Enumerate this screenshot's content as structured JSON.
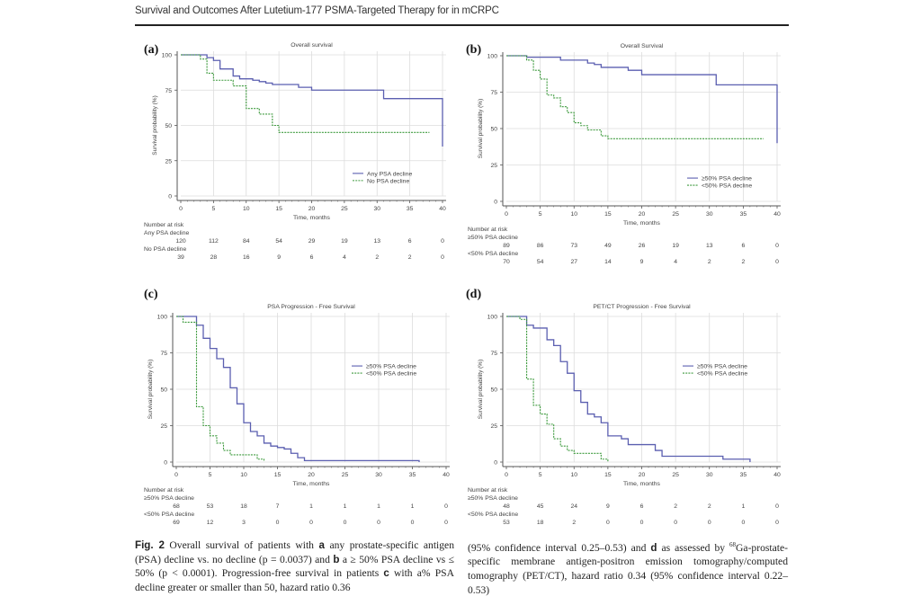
{
  "header": {
    "running_title": "Survival and Outcomes After Lutetium-177 PSMA-Targeted Therapy for in mCRPC"
  },
  "colors": {
    "series_primary": "#5b5fb0",
    "series_secondary": "#3d9a3d",
    "grid": "#dcdcdc",
    "axis": "#555555"
  },
  "chart_data": [
    {
      "id": "a",
      "panel_label": "(a)",
      "type": "line",
      "subtype": "kaplan-meier",
      "title": "Overall survival",
      "xlabel": "Time, months",
      "ylabel": "Survival probability (%)",
      "xlim": [
        0,
        40
      ],
      "ylim": [
        0,
        100
      ],
      "xticks": [
        0,
        5,
        10,
        15,
        20,
        25,
        30,
        35,
        40
      ],
      "yticks": [
        0,
        25,
        50,
        75,
        100
      ],
      "grid": true,
      "legend_position": "bottom-right",
      "series": [
        {
          "name": "Any PSA decline",
          "style": "solid",
          "steps": [
            [
              0,
              100
            ],
            [
              3,
              100
            ],
            [
              4,
              98
            ],
            [
              5,
              96
            ],
            [
              6,
              90
            ],
            [
              8,
              85
            ],
            [
              9,
              83
            ],
            [
              11,
              82
            ],
            [
              12,
              81
            ],
            [
              13,
              80
            ],
            [
              14,
              79
            ],
            [
              18,
              77
            ],
            [
              20,
              75
            ],
            [
              31,
              69
            ],
            [
              40,
              35
            ]
          ]
        },
        {
          "name": "No PSA decline",
          "style": "dashed",
          "steps": [
            [
              0,
              100
            ],
            [
              3,
              100
            ],
            [
              3,
              97
            ],
            [
              4,
              87
            ],
            [
              5,
              82
            ],
            [
              8,
              78
            ],
            [
              10,
              62
            ],
            [
              12,
              58
            ],
            [
              14,
              50
            ],
            [
              15,
              45
            ],
            [
              38,
              45
            ]
          ]
        }
      ],
      "risk_table": {
        "title": "Number at risk",
        "times": [
          0,
          5,
          10,
          15,
          20,
          25,
          30,
          35,
          40
        ],
        "rows": [
          {
            "label": "Any PSA decline",
            "values": [
              120,
              112,
              84,
              54,
              29,
              19,
              13,
              6,
              0
            ]
          },
          {
            "label": "No PSA decline",
            "values": [
              39,
              28,
              16,
              9,
              6,
              4,
              2,
              2,
              0
            ]
          }
        ]
      }
    },
    {
      "id": "b",
      "panel_label": "(b)",
      "type": "line",
      "subtype": "kaplan-meier",
      "title": "Overall Survival",
      "xlabel": "Time, months",
      "ylabel": "Survival probability (%)",
      "xlim": [
        0,
        40
      ],
      "ylim": [
        0,
        100
      ],
      "xticks": [
        0,
        5,
        10,
        15,
        20,
        25,
        30,
        35,
        40
      ],
      "yticks": [
        0,
        25,
        50,
        75,
        100
      ],
      "grid": true,
      "legend_position": "bottom-right",
      "series": [
        {
          "name": "≥50% PSA decline",
          "style": "solid",
          "steps": [
            [
              0,
              100
            ],
            [
              3,
              100
            ],
            [
              3,
              99
            ],
            [
              8,
              97
            ],
            [
              12,
              95
            ],
            [
              13,
              94
            ],
            [
              14,
              92
            ],
            [
              18,
              90
            ],
            [
              20,
              87
            ],
            [
              31,
              80
            ],
            [
              40,
              40
            ]
          ]
        },
        {
          "name": "<50% PSA decline",
          "style": "dashed",
          "steps": [
            [
              0,
              100
            ],
            [
              3,
              100
            ],
            [
              3,
              97
            ],
            [
              4,
              90
            ],
            [
              5,
              84
            ],
            [
              6,
              73
            ],
            [
              7,
              71
            ],
            [
              8,
              65
            ],
            [
              9,
              61
            ],
            [
              10,
              54
            ],
            [
              11,
              52
            ],
            [
              12,
              49
            ],
            [
              14,
              45
            ],
            [
              15,
              43
            ],
            [
              38,
              43
            ]
          ]
        }
      ],
      "risk_table": {
        "title": "Number at risk",
        "times": [
          0,
          5,
          10,
          15,
          20,
          25,
          30,
          35,
          40
        ],
        "rows": [
          {
            "label": "≥50% PSA decline",
            "values": [
              89,
              86,
              73,
              49,
              26,
              19,
              13,
              6,
              0
            ]
          },
          {
            "label": "<50% PSA decline",
            "values": [
              70,
              54,
              27,
              14,
              9,
              4,
              2,
              2,
              0
            ]
          }
        ]
      }
    },
    {
      "id": "c",
      "panel_label": "(c)",
      "type": "line",
      "subtype": "kaplan-meier",
      "title": "PSA Progression - Free Survival",
      "xlabel": "Time, months",
      "ylabel": "Survival probability (%)",
      "xlim": [
        0,
        40
      ],
      "ylim": [
        0,
        100
      ],
      "xticks": [
        0,
        5,
        10,
        15,
        20,
        25,
        30,
        35,
        40
      ],
      "yticks": [
        0,
        25,
        50,
        75,
        100
      ],
      "grid": true,
      "legend_position": "top-right",
      "series": [
        {
          "name": "≥50% PSA decline",
          "style": "solid",
          "steps": [
            [
              0,
              100
            ],
            [
              3,
              100
            ],
            [
              3,
              94
            ],
            [
              4,
              85
            ],
            [
              5,
              78
            ],
            [
              6,
              71
            ],
            [
              7,
              65
            ],
            [
              8,
              51
            ],
            [
              9,
              40
            ],
            [
              10,
              27
            ],
            [
              11,
              21
            ],
            [
              12,
              18
            ],
            [
              13,
              13
            ],
            [
              14,
              11
            ],
            [
              15,
              10
            ],
            [
              16,
              9
            ],
            [
              17,
              6
            ],
            [
              18,
              3
            ],
            [
              19,
              1
            ],
            [
              36,
              1
            ],
            [
              36,
              0
            ]
          ]
        },
        {
          "name": "<50% PSA decline",
          "style": "dashed",
          "steps": [
            [
              0,
              100
            ],
            [
              1,
              100
            ],
            [
              1,
              96
            ],
            [
              3,
              96
            ],
            [
              3,
              38
            ],
            [
              4,
              25
            ],
            [
              5,
              18
            ],
            [
              6,
              13
            ],
            [
              7,
              8
            ],
            [
              8,
              5
            ],
            [
              12,
              5
            ],
            [
              12,
              2
            ],
            [
              13,
              1
            ]
          ]
        }
      ],
      "risk_table": {
        "title": "Number at risk",
        "times": [
          0,
          5,
          10,
          15,
          20,
          25,
          30,
          35,
          40
        ],
        "rows": [
          {
            "label": "≥50% PSA decline",
            "values": [
              68,
              53,
              18,
              7,
              1,
              1,
              1,
              1,
              0
            ]
          },
          {
            "label": "<50% PSA decline",
            "values": [
              69,
              12,
              3,
              0,
              0,
              0,
              0,
              0,
              0
            ]
          }
        ]
      }
    },
    {
      "id": "d",
      "panel_label": "(d)",
      "type": "line",
      "subtype": "kaplan-meier",
      "title": "PET/CT Progression - Free Survival",
      "xlabel": "Time, months",
      "ylabel": "Survival probability (%)",
      "xlim": [
        0,
        40
      ],
      "ylim": [
        0,
        100
      ],
      "xticks": [
        0,
        5,
        10,
        15,
        20,
        25,
        30,
        35,
        40
      ],
      "yticks": [
        0,
        25,
        50,
        75,
        100
      ],
      "grid": true,
      "legend_position": "top-right",
      "series": [
        {
          "name": "≥50% PSA decline",
          "style": "solid",
          "steps": [
            [
              0,
              100
            ],
            [
              3,
              100
            ],
            [
              3,
              94
            ],
            [
              4,
              92
            ],
            [
              6,
              84
            ],
            [
              7,
              80
            ],
            [
              8,
              69
            ],
            [
              9,
              61
            ],
            [
              10,
              49
            ],
            [
              11,
              41
            ],
            [
              12,
              33
            ],
            [
              13,
              31
            ],
            [
              14,
              27
            ],
            [
              15,
              18
            ],
            [
              17,
              16
            ],
            [
              18,
              12
            ],
            [
              22,
              8
            ],
            [
              23,
              4
            ],
            [
              32,
              2
            ],
            [
              36,
              2
            ],
            [
              36,
              0
            ]
          ]
        },
        {
          "name": "<50% PSA decline",
          "style": "dashed",
          "steps": [
            [
              0,
              100
            ],
            [
              2,
              100
            ],
            [
              2,
              98
            ],
            [
              3,
              98
            ],
            [
              3,
              57
            ],
            [
              4,
              39
            ],
            [
              5,
              33
            ],
            [
              6,
              26
            ],
            [
              7,
              16
            ],
            [
              8,
              11
            ],
            [
              9,
              8
            ],
            [
              10,
              6
            ],
            [
              14,
              6
            ],
            [
              14,
              2
            ],
            [
              15,
              2
            ],
            [
              15,
              0
            ]
          ]
        }
      ],
      "risk_table": {
        "title": "Number at risk",
        "times": [
          0,
          5,
          10,
          15,
          20,
          25,
          30,
          35,
          40
        ],
        "rows": [
          {
            "label": "≥50% PSA decline",
            "values": [
              48,
              45,
              24,
              9,
              6,
              2,
              2,
              1,
              0
            ]
          },
          {
            "label": "<50% PSA decline",
            "values": [
              53,
              18,
              2,
              0,
              0,
              0,
              0,
              0,
              0
            ]
          }
        ]
      }
    }
  ],
  "caption": {
    "left": {
      "fig_label": "Fig. 2",
      "text_1": " Overall survival of patients with ",
      "bold_a": "a",
      "text_2": " any prostate-specific antigen (PSA) decline vs. no decline (p = 0.0037) and ",
      "bold_b": "b",
      "text_3": " a ≥ 50% PSA decline vs ≤ 50% (p < 0.0001). Progression-free survival in patients ",
      "bold_c": "c",
      "text_4": " with a% PSA decline greater or smaller than 50, hazard ratio 0.36"
    },
    "right": {
      "text_1": "(95% confidence interval 0.25–0.53) and ",
      "bold_d": "d",
      "text_2": " as assessed by ",
      "superscript": "68",
      "text_3": "Ga-prostate-specific membrane antigen-positron emission tomography/computed tomography (PET/CT), hazard ratio 0.34 (95% confidence interval 0.22–0.53)"
    }
  }
}
